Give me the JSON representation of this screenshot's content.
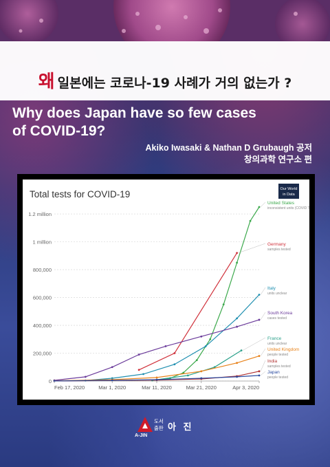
{
  "cover": {
    "title_ko_first": "왜",
    "title_ko_rest": "일본에는 코로나-19 사례가 거의 없는가 ?",
    "title_en_line1": "Why does Japan have so few cases",
    "title_en_line2": "of COVID-19?",
    "authors": "Akiko Iwasaki & Nathan D Grubaugh  공저",
    "editor": "창의과학 연구소 편",
    "publisher_small_1": "도서",
    "publisher_small_2": "출판",
    "publisher_name": "아 진",
    "publisher_logo": "A-JIN"
  },
  "colors": {
    "accent_red": "#c8102e",
    "us": "#3aa84a",
    "germany": "#d0303a",
    "italy": "#1f8fb0",
    "south_korea": "#6a3a9a",
    "france": "#2aa08a",
    "uk": "#e8821a",
    "india": "#b03030",
    "japan": "#2a4aa0"
  },
  "chart_data": {
    "type": "line",
    "title": "Total tests for COVID-19",
    "badge_line1": "Our World",
    "badge_line2": "in Data",
    "x_ticks": [
      "Feb 17, 2020",
      "Mar 1, 2020",
      "Mar 11, 2020",
      "Mar 21, 2020",
      "Apr 3, 2020"
    ],
    "y_ticks": [
      "0",
      "200,000",
      "400,000",
      "600,000",
      "800,000",
      "1 million",
      "1.2 million"
    ],
    "xlim": [
      "2020-02-17",
      "2020-04-03"
    ],
    "ylim": [
      0,
      1250000
    ],
    "series": [
      {
        "name": "United States",
        "note": "inconsistent units (COVID Tracking Project)",
        "color": "#3aa84a",
        "points": [
          [
            "2020-03-10",
            5000
          ],
          [
            "2020-03-14",
            20000
          ],
          [
            "2020-03-17",
            60000
          ],
          [
            "2020-03-20",
            150000
          ],
          [
            "2020-03-23",
            300000
          ],
          [
            "2020-03-26",
            550000
          ],
          [
            "2020-03-29",
            850000
          ],
          [
            "2020-04-01",
            1150000
          ],
          [
            "2020-04-03",
            1250000
          ]
        ]
      },
      {
        "name": "Germany",
        "note": "samples tested",
        "color": "#d0303a",
        "points": [
          [
            "2020-03-07",
            80000
          ],
          [
            "2020-03-15",
            200000
          ],
          [
            "2020-03-29",
            920000
          ]
        ]
      },
      {
        "name": "Italy",
        "note": "units unclear",
        "color": "#1f8fb0",
        "points": [
          [
            "2020-02-24",
            4000
          ],
          [
            "2020-03-01",
            20000
          ],
          [
            "2020-03-08",
            50000
          ],
          [
            "2020-03-15",
            120000
          ],
          [
            "2020-03-22",
            250000
          ],
          [
            "2020-03-29",
            450000
          ],
          [
            "2020-04-03",
            620000
          ]
        ]
      },
      {
        "name": "South Korea",
        "note": "cases tested",
        "color": "#6a3a9a",
        "points": [
          [
            "2020-02-17",
            5000
          ],
          [
            "2020-02-24",
            30000
          ],
          [
            "2020-03-01",
            100000
          ],
          [
            "2020-03-07",
            190000
          ],
          [
            "2020-03-13",
            250000
          ],
          [
            "2020-03-21",
            320000
          ],
          [
            "2020-03-29",
            390000
          ],
          [
            "2020-04-03",
            440000
          ]
        ]
      },
      {
        "name": "France",
        "note": "units unclear",
        "color": "#2aa08a",
        "points": [
          [
            "2020-03-10",
            5000
          ],
          [
            "2020-03-18",
            40000
          ],
          [
            "2020-03-24",
            100000
          ],
          [
            "2020-03-30",
            220000
          ]
        ]
      },
      {
        "name": "United Kingdom",
        "note": "people tested",
        "color": "#e8821a",
        "points": [
          [
            "2020-02-17",
            2000
          ],
          [
            "2020-03-01",
            10000
          ],
          [
            "2020-03-11",
            25000
          ],
          [
            "2020-03-21",
            70000
          ],
          [
            "2020-03-29",
            130000
          ],
          [
            "2020-04-03",
            180000
          ]
        ]
      },
      {
        "name": "India",
        "note": "samples tested",
        "color": "#b03030",
        "points": [
          [
            "2020-02-17",
            500
          ],
          [
            "2020-03-11",
            7000
          ],
          [
            "2020-03-21",
            15000
          ],
          [
            "2020-03-29",
            35000
          ],
          [
            "2020-04-03",
            70000
          ]
        ]
      },
      {
        "name": "Japan",
        "note": "people tested",
        "color": "#2a4aa0",
        "points": [
          [
            "2020-02-17",
            500
          ],
          [
            "2020-03-01",
            5000
          ],
          [
            "2020-03-11",
            10000
          ],
          [
            "2020-03-21",
            20000
          ],
          [
            "2020-03-29",
            30000
          ],
          [
            "2020-04-03",
            40000
          ]
        ]
      }
    ]
  }
}
